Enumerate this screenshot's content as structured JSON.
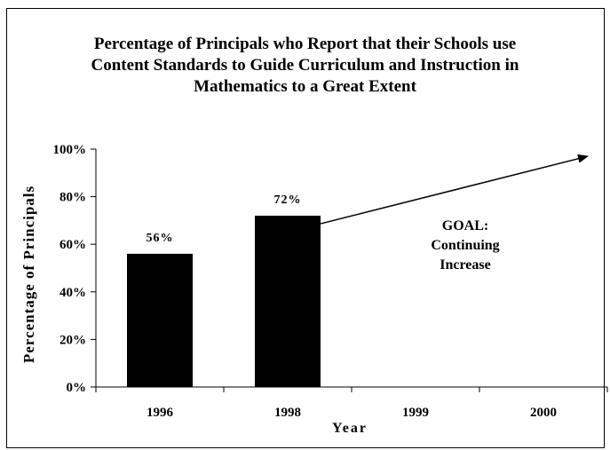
{
  "chart_data": {
    "type": "bar",
    "title_lines": [
      "Percentage of Principals who Report that their Schools use",
      "Content Standards to Guide Curriculum and Instruction in",
      "Mathematics to a Great Extent"
    ],
    "xlabel": "Year",
    "ylabel": "Percentage of Principals",
    "categories": [
      "1996",
      "1998",
      "1999",
      "2000"
    ],
    "values": [
      56,
      72,
      null,
      null
    ],
    "data_labels": [
      "56%",
      "72%",
      "",
      ""
    ],
    "yticks": [
      0,
      20,
      40,
      60,
      80,
      100
    ],
    "ytick_labels": [
      "0%",
      "20%",
      "40%",
      "60%",
      "80%",
      "100%"
    ],
    "ylim": [
      0,
      100
    ],
    "grid": false,
    "bar_color": "#000000",
    "annotation": {
      "lines": [
        "GOAL:",
        "Continuing",
        "Increase"
      ],
      "arrow_from": {
        "category": "1998",
        "value": 72
      },
      "arrow_to_value": 97
    }
  }
}
